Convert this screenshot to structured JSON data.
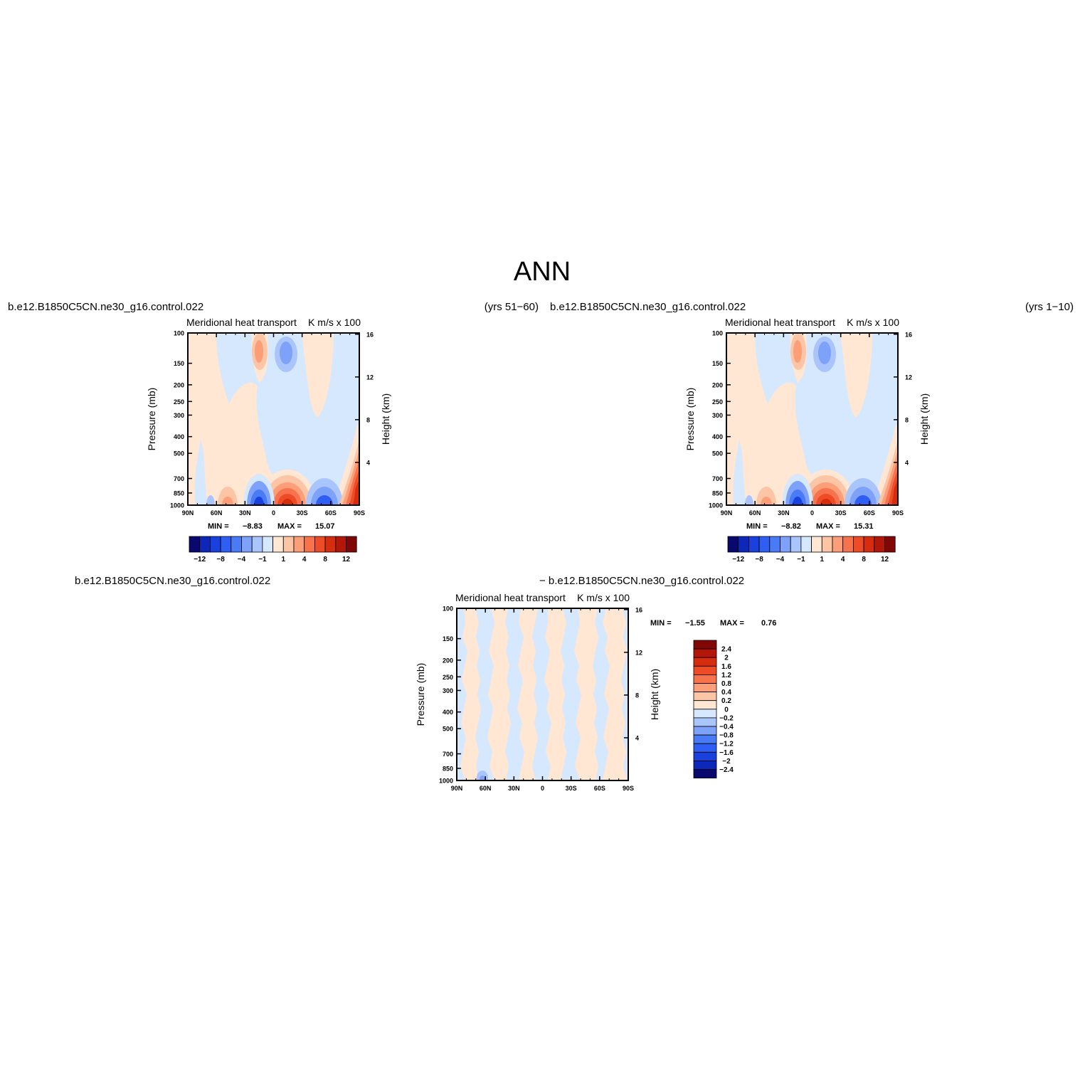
{
  "figure_title": "ANN",
  "chart_data": [
    {
      "type": "heatmap",
      "case_name": "b.e12.B1850C5CN.ne30_g16.control.022",
      "period": "(yrs 51−60)",
      "title": "Meridional heat transport",
      "units": "K m/s x 100",
      "xlabel": "",
      "ylabel_left": "Pressure (mb)",
      "ylabel_right": "Height (km)",
      "x_ticks": [
        "90N",
        "60N",
        "30N",
        "0",
        "30S",
        "60S",
        "90S"
      ],
      "y_ticks": [
        "100",
        "150",
        "200",
        "250",
        "300",
        "400",
        "500",
        "700",
        "850",
        "1000"
      ],
      "y_right_ticks": [
        "16",
        "12",
        "8",
        "4"
      ],
      "ylim": [
        1000,
        100
      ],
      "min_label": "MIN =",
      "min_value": "−8.83",
      "max_label": "MAX =",
      "max_value": "15.07",
      "colorbar_orientation": "horizontal",
      "colorbar_labels": [
        "−12",
        "−8",
        "−4",
        "−1",
        "1",
        "4",
        "8",
        "12"
      ],
      "colorbar_colors": [
        "#08086e",
        "#0d27b8",
        "#1a40dd",
        "#2f5ef2",
        "#4a7bf7",
        "#7ea1fa",
        "#a9c5fc",
        "#d6e8fd",
        "#ffe7d4",
        "#fcc5a5",
        "#fc9e78",
        "#f7734e",
        "#ee4c26",
        "#d62d0f",
        "#b31709",
        "#800706"
      ],
      "features": [
        {
          "x": 12,
          "p": 950,
          "value": -6
        },
        {
          "x": -12,
          "p": 950,
          "value": 12
        },
        {
          "x": -52,
          "p": 960,
          "value": -5
        },
        {
          "x": 48,
          "p": 960,
          "value": 4
        },
        {
          "x": 12,
          "p": 200,
          "value": 4
        },
        {
          "x": -12,
          "p": 200,
          "value": -4
        },
        {
          "x": -75,
          "p": 900,
          "value": 8
        }
      ]
    },
    {
      "type": "heatmap",
      "case_name": "b.e12.B1850C5CN.ne30_g16.control.022",
      "period": "(yrs 1−10)",
      "title": "Meridional heat transport",
      "units": "K m/s x 100",
      "xlabel": "",
      "ylabel_left": "Pressure (mb)",
      "ylabel_right": "Height (km)",
      "x_ticks": [
        "90N",
        "60N",
        "30N",
        "0",
        "30S",
        "60S",
        "90S"
      ],
      "y_ticks": [
        "100",
        "150",
        "200",
        "250",
        "300",
        "400",
        "500",
        "700",
        "850",
        "1000"
      ],
      "y_right_ticks": [
        "16",
        "12",
        "8",
        "4"
      ],
      "ylim": [
        1000,
        100
      ],
      "min_label": "MIN =",
      "min_value": "−8.82",
      "max_label": "MAX =",
      "max_value": "15.31",
      "colorbar_orientation": "horizontal",
      "colorbar_labels": [
        "−12",
        "−8",
        "−4",
        "−1",
        "1",
        "4",
        "8",
        "12"
      ],
      "colorbar_colors": [
        "#08086e",
        "#0d27b8",
        "#1a40dd",
        "#2f5ef2",
        "#4a7bf7",
        "#7ea1fa",
        "#a9c5fc",
        "#d6e8fd",
        "#ffe7d4",
        "#fcc5a5",
        "#fc9e78",
        "#f7734e",
        "#ee4c26",
        "#d62d0f",
        "#b31709",
        "#800706"
      ],
      "features": [
        {
          "x": 12,
          "p": 950,
          "value": -6
        },
        {
          "x": -12,
          "p": 950,
          "value": 12
        },
        {
          "x": -52,
          "p": 960,
          "value": -5
        },
        {
          "x": 48,
          "p": 960,
          "value": 4
        },
        {
          "x": 12,
          "p": 200,
          "value": 4
        },
        {
          "x": -12,
          "p": 200,
          "value": -4
        },
        {
          "x": -75,
          "p": 900,
          "value": 8
        }
      ]
    },
    {
      "type": "heatmap",
      "case_name": "b.e12.B1850C5CN.ne30_g16.control.022",
      "case_name_2": "− b.e12.B1850C5CN.ne30_g16.control.022",
      "title": "Meridional heat transport",
      "units": "K m/s x 100",
      "xlabel": "",
      "ylabel_left": "Pressure (mb)",
      "ylabel_right": "Height (km)",
      "x_ticks": [
        "90N",
        "60N",
        "30N",
        "0",
        "30S",
        "60S",
        "90S"
      ],
      "y_ticks": [
        "100",
        "150",
        "200",
        "250",
        "300",
        "400",
        "500",
        "700",
        "850",
        "1000"
      ],
      "y_right_ticks": [
        "16",
        "12",
        "8",
        "4"
      ],
      "ylim": [
        1000,
        100
      ],
      "min_label": "MIN =",
      "min_value": "−1.55",
      "max_label": "MAX =",
      "max_value": "0.76",
      "colorbar_orientation": "vertical",
      "colorbar_labels": [
        "2.4",
        "2",
        "1.6",
        "1.2",
        "0.8",
        "0.4",
        "0.2",
        "0",
        "−0.2",
        "−0.4",
        "−0.8",
        "−1.2",
        "−1.6",
        "−2",
        "−2.4"
      ],
      "colorbar_colors": [
        "#800706",
        "#b31709",
        "#d62d0f",
        "#ee4c26",
        "#f7734e",
        "#fc9e78",
        "#fcc5a5",
        "#ffe7d4",
        "#d6e8fd",
        "#a9c5fc",
        "#7ea1fa",
        "#4a7bf7",
        "#2f5ef2",
        "#1a40dd",
        "#0d27b8",
        "#08086e"
      ]
    }
  ]
}
